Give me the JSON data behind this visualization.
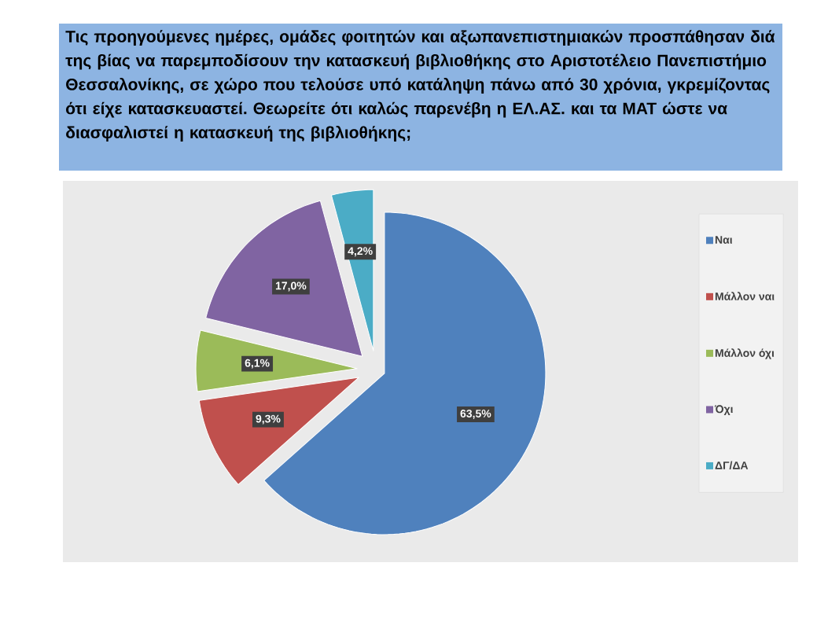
{
  "chart_data": {
    "type": "pie",
    "title": "Τις προηγούμενες ημέρες, ομάδες φοιτητών και αξωπανεπιστημιακών προσπάθησαν διά της βίας να παρεμποδίσουν την κατασκευή βιβλιοθήκης στο Αριστοτέλειο Πανεπιστήμιο Θεσσαλονίκης, σε χώρο που τελούσε υπό κατάληψη πάνω από 30 χρόνια, γκρεμίζοντας ότι είχε κατασκευαστεί. Θεωρείτε ότι καλώς παρενέβη η ΕΛ.ΑΣ. και τα ΜΑΤ ώστε να διασφαλιστεί η κατασκευή της βιβλιοθήκης;",
    "categories": [
      "Ναι",
      "Μάλλον ναι",
      "Μάλλον όχι",
      "Όχι",
      "ΔΓ/ΔΑ"
    ],
    "values": [
      63.5,
      9.3,
      6.1,
      17.0,
      4.2
    ],
    "colors": [
      "#4f81bd",
      "#c0504d",
      "#9bbb59",
      "#8064a2",
      "#4bacc6"
    ],
    "value_labels": [
      "63,5%",
      "9,3%",
      "6,1%",
      "17,0%",
      "4,2%"
    ],
    "legend": "right"
  }
}
